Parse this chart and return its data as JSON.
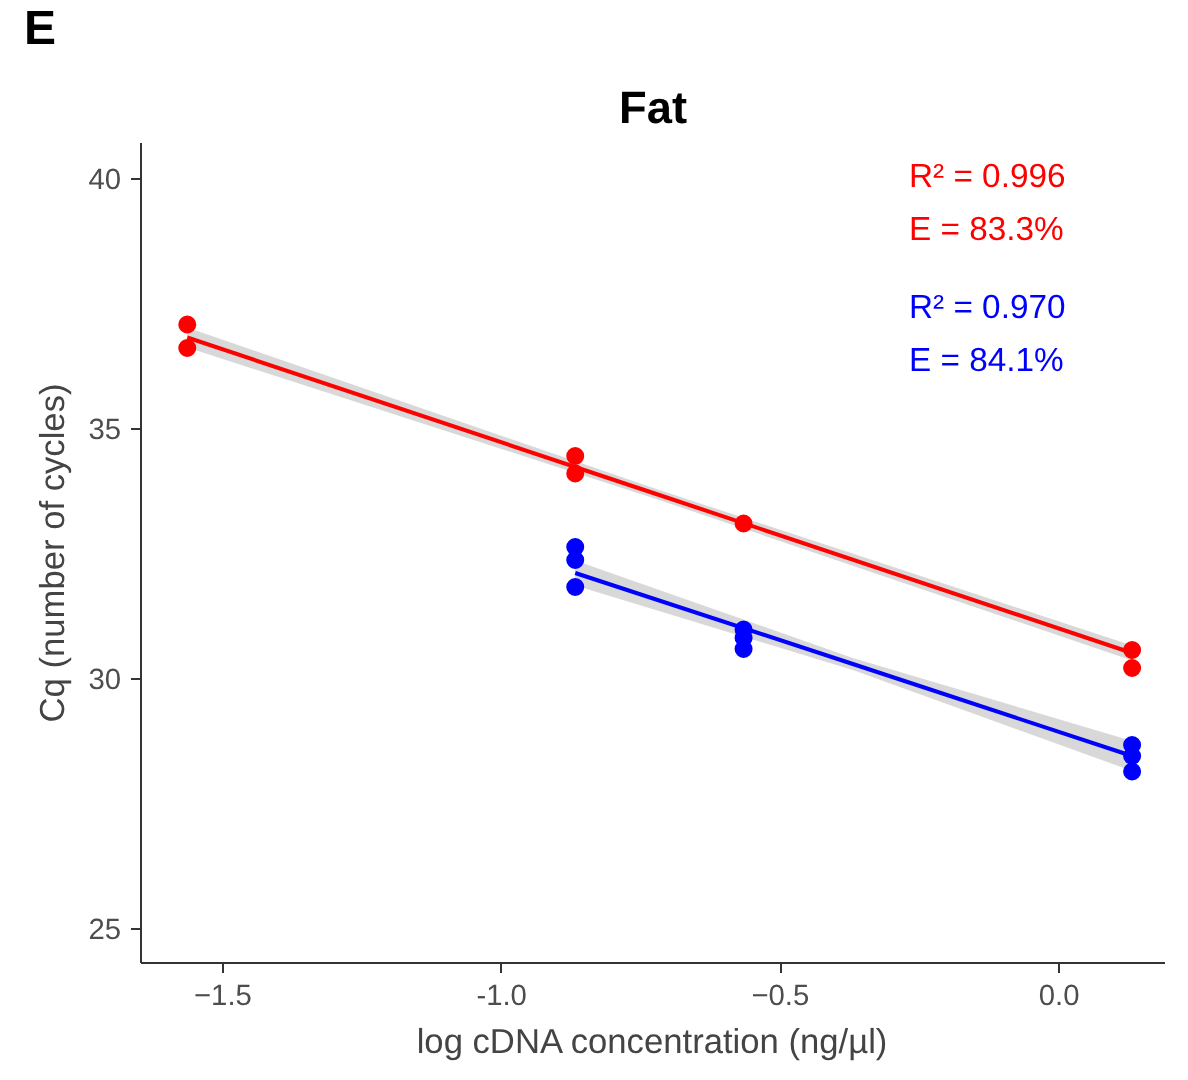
{
  "chart_data": {
    "type": "scatter",
    "title": "Fat",
    "xlabel": "log cDNA concentration (ng/µl)",
    "ylabel": "Cq (number of cycles)",
    "annotations": [
      "E",
      "R² = 0.996",
      "E  = 83.3%",
      "R² = 0.970",
      "E  = 84.1%"
    ],
    "xlim": [
      -1.647,
      0.19
    ],
    "ylim": [
      24.3,
      40.7
    ],
    "xticks": [
      -1.5,
      {
        "value": -1.0,
        "label": "-1.0"
      },
      -0.5,
      {
        "value": 0.0,
        "label": "0.0"
      }
    ],
    "yticks": [
      25,
      30,
      35,
      40
    ],
    "grid": false,
    "marker": "circle",
    "series": [
      {
        "color": "#ff0000",
        "x": [
          -1.564,
          -1.564,
          -0.868,
          -0.868,
          -0.566,
          0.131,
          0.131
        ],
        "values": [
          37.07,
          36.6,
          34.44,
          34.09,
          33.09,
          30.56,
          30.2
        ]
      },
      {
        "color": "#0000ff",
        "x": [
          -0.868,
          -0.868,
          -0.868,
          -0.566,
          -0.566,
          -0.566,
          0.131,
          0.131,
          0.131
        ],
        "values": [
          32.62,
          32.36,
          31.82,
          30.97,
          30.8,
          30.58,
          28.66,
          28.44,
          28.13
        ]
      },
      {
        "type": "line",
        "marker": "none",
        "color": "#ff0000",
        "x": [
          -1.564,
          -0.72,
          0.131
        ],
        "values": [
          36.81,
          33.67,
          30.5
        ],
        "lower": [
          36.61,
          33.57,
          30.35
        ],
        "upper": [
          37.01,
          33.77,
          30.65
        ]
      },
      {
        "type": "line",
        "marker": "none",
        "color": "#0000ff",
        "x": [
          -0.868,
          -0.37,
          0.131
        ],
        "values": [
          32.1,
          30.28,
          28.44
        ],
        "lower": [
          31.85,
          30.16,
          28.14
        ],
        "upper": [
          32.35,
          30.4,
          28.74
        ]
      }
    ]
  }
}
